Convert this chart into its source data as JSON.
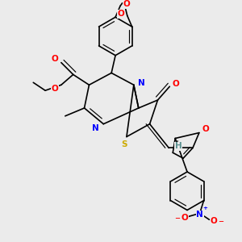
{
  "background_color": "#ebebeb",
  "bond_color": "#000000",
  "atom_colors": {
    "O": "#ff0000",
    "N": "#0000ff",
    "S": "#ccaa00",
    "H": "#5a9090",
    "C": "#000000"
  },
  "font_size": 7.5
}
